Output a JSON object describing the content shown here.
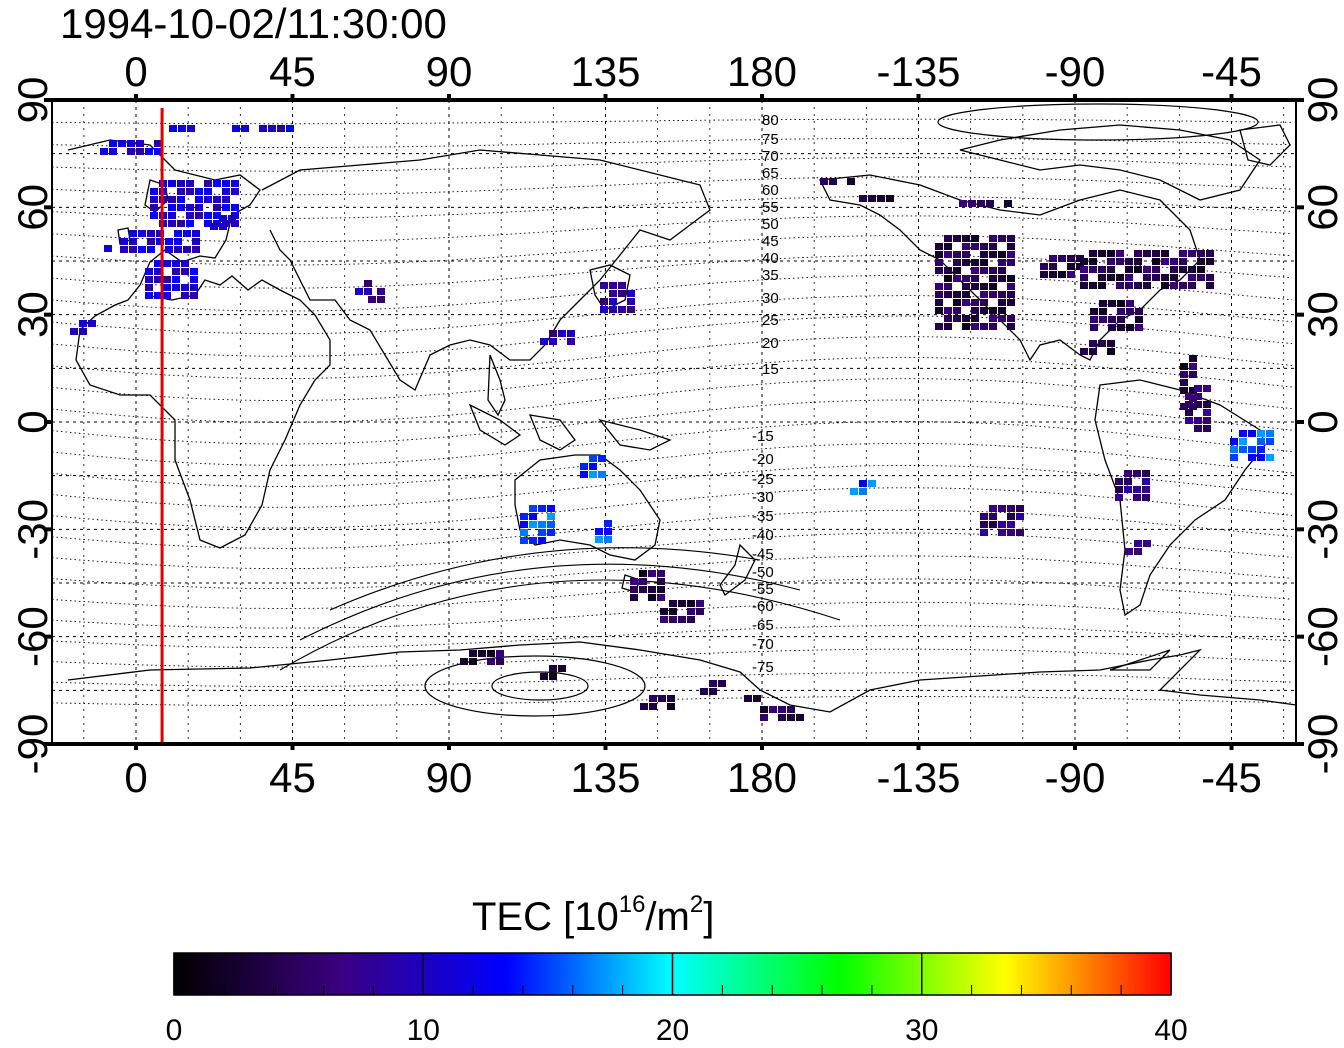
{
  "title": "1994-10-02/11:30:00",
  "map": {
    "lon_ticks_top": [
      "0",
      "45",
      "90",
      "135",
      "180",
      "-135",
      "-90",
      "-45"
    ],
    "lon_ticks_bottom": [
      "0",
      "45",
      "90",
      "135",
      "180",
      "-135",
      "-90",
      "-45"
    ],
    "lat_ticks_left": [
      "90",
      "60",
      "30",
      "0",
      "-30",
      "-60",
      "-90"
    ],
    "lat_ticks_right": [
      "90",
      "60",
      "30",
      "0",
      "-30",
      "-60",
      "-90"
    ],
    "contour_labels_north": [
      "80",
      "75",
      "70",
      "65",
      "60",
      "55",
      "50",
      "45",
      "40",
      "35",
      "30",
      "25",
      "20",
      "15"
    ],
    "contour_labels_south": [
      "-15",
      "-20",
      "-25",
      "-30",
      "-35",
      "-40",
      "-45",
      "-50",
      "-55",
      "-60",
      "-65",
      "-70",
      "-75"
    ],
    "marker_longitude_deg": 7.5,
    "marker_color": "#e00000"
  },
  "colorbar": {
    "label_main": "TEC  [10",
    "label_exp": "16",
    "label_unit": "/m",
    "label_unit_exp": "2",
    "label_close": "]",
    "ticks": [
      "0",
      "10",
      "20",
      "30",
      "40"
    ],
    "range": [
      0,
      40
    ],
    "colors": [
      "#000000",
      "#3a0080",
      "#0000ff",
      "#00ffff",
      "#00ff00",
      "#ffff00",
      "#ff0000"
    ]
  },
  "tec_regions": [
    {
      "name": "europe",
      "tec": 11
    },
    {
      "name": "japan",
      "tec": 8
    },
    {
      "name": "north-america",
      "tec": 4
    },
    {
      "name": "australia",
      "tec": 15
    },
    {
      "name": "antarctica",
      "tec": 4
    },
    {
      "name": "south-america",
      "tec": 6
    }
  ]
}
